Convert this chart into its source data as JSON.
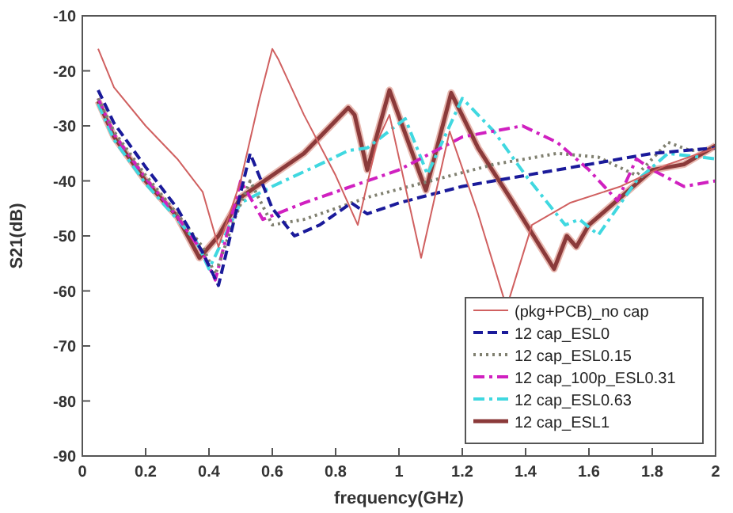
{
  "chart_data": {
    "type": "line",
    "xlabel": "frequency(GHz)",
    "ylabel": "S21(dB)",
    "xlim": [
      0,
      2
    ],
    "ylim": [
      -90,
      -10
    ],
    "xticks": [
      0,
      0.2,
      0.4,
      0.6,
      0.8,
      1,
      1.2,
      1.4,
      1.6,
      1.8,
      2
    ],
    "yticks": [
      -90,
      -80,
      -70,
      -60,
      -50,
      -40,
      -30,
      -20,
      -10
    ],
    "grid": false,
    "legend": "bottom right",
    "marker": "none",
    "series": [
      {
        "name": "(pkg+PCB)_no cap",
        "color": "#d06060",
        "line_style": "solid",
        "x": [
          0.05,
          0.1,
          0.2,
          0.3,
          0.38,
          0.43,
          0.5,
          0.56,
          0.6,
          0.62,
          0.7,
          0.8,
          0.87,
          0.93,
          0.97,
          1.07,
          1.16,
          1.25,
          1.34,
          1.42,
          1.54,
          1.7,
          1.85,
          2
        ],
        "values": [
          -16,
          -23,
          -30,
          -36,
          -42,
          -52,
          -40,
          -25,
          -16,
          -18,
          -28,
          -39,
          -48,
          -33,
          -28,
          -54,
          -31,
          -46,
          -63,
          -48,
          -44,
          -41,
          -37,
          -34
        ]
      },
      {
        "name": "12 cap_ESL0",
        "color": "#1a1a9a",
        "line_style": "dashed",
        "x": [
          0.05,
          0.1,
          0.2,
          0.3,
          0.38,
          0.43,
          0.48,
          0.53,
          0.6,
          0.67,
          0.75,
          0.85,
          0.9,
          1.0,
          1.2,
          1.4,
          1.6,
          1.8,
          2
        ],
        "values": [
          -23.5,
          -29.5,
          -37.5,
          -45,
          -53,
          -59,
          -47,
          -35,
          -45,
          -50,
          -48,
          -44,
          -46,
          -44,
          -41,
          -39,
          -37,
          -35,
          -34
        ]
      },
      {
        "name": "12 cap_ESL0.15",
        "color": "#808070",
        "line_style": "dotted",
        "x": [
          0.05,
          0.1,
          0.2,
          0.3,
          0.38,
          0.42,
          0.48,
          0.53,
          0.6,
          0.7,
          0.9,
          1.1,
          1.3,
          1.5,
          1.63,
          1.75,
          1.85,
          1.92,
          2
        ],
        "values": [
          -25,
          -31,
          -39,
          -46,
          -52,
          -57,
          -47,
          -40,
          -48,
          -47,
          -43,
          -40,
          -37,
          -35,
          -35.7,
          -39,
          -33,
          -34.5,
          -34
        ]
      },
      {
        "name": "12 cap_100p_ESL0.31",
        "color": "#d020c0",
        "line_style": "dashdot",
        "x": [
          0.05,
          0.1,
          0.2,
          0.3,
          0.38,
          0.42,
          0.46,
          0.5,
          0.57,
          0.7,
          0.85,
          1.0,
          1.2,
          1.39,
          1.5,
          1.6,
          1.69,
          1.75,
          1.8,
          1.9,
          2
        ],
        "values": [
          -25,
          -31.5,
          -39.5,
          -46.5,
          -53,
          -58,
          -49,
          -40,
          -47,
          -44,
          -41,
          -38,
          -32,
          -30,
          -33,
          -38,
          -43.6,
          -36,
          -38,
          -41,
          -40
        ]
      },
      {
        "name": "12 cap_ESL0.63",
        "color": "#40d8e0",
        "line_style": "dashdot",
        "x": [
          0.05,
          0.1,
          0.2,
          0.3,
          0.36,
          0.4,
          0.45,
          0.5,
          0.6,
          0.75,
          0.84,
          0.9,
          1.02,
          1.09,
          1.2,
          1.3,
          1.4,
          1.525,
          1.57,
          1.63,
          1.75,
          1.85,
          2
        ],
        "values": [
          -26,
          -32.5,
          -40.5,
          -47,
          -51,
          -56,
          -50,
          -44,
          -41,
          -37,
          -34.5,
          -34,
          -28.7,
          -38.8,
          -25,
          -31,
          -39,
          -48,
          -47,
          -49.8,
          -40,
          -35,
          -36
        ]
      },
      {
        "name": "12 cap_ESL1",
        "color": "#8b3a3a",
        "line_style": "solid",
        "x": [
          0.05,
          0.1,
          0.2,
          0.3,
          0.37,
          0.43,
          0.5,
          0.6,
          0.7,
          0.84,
          0.86,
          0.9,
          0.97,
          1.085,
          1.165,
          1.25,
          1.35,
          1.49,
          1.53,
          1.56,
          1.6,
          1.7,
          1.8,
          1.9,
          2
        ],
        "values": [
          -25.5,
          -32,
          -40,
          -46.5,
          -54,
          -50,
          -43,
          -39,
          -35,
          -26.7,
          -28,
          -38,
          -23.5,
          -41.7,
          -24,
          -34,
          -43,
          -56,
          -50,
          -52,
          -48,
          -43,
          -38,
          -37,
          -33.6
        ]
      }
    ]
  }
}
